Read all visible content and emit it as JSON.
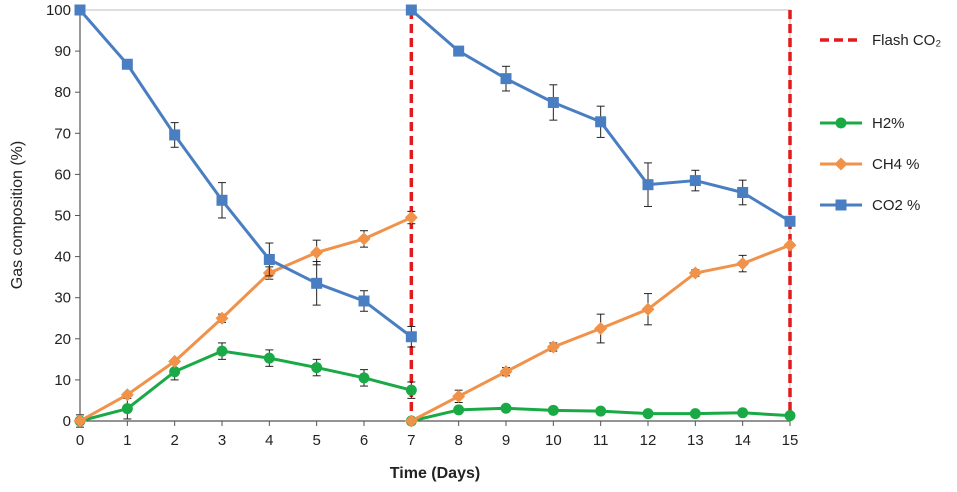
{
  "chart_data": {
    "type": "line",
    "title": "",
    "xlabel": "Time (Days)",
    "ylabel": "Gas composition (%)",
    "xlim": [
      0,
      15
    ],
    "ylim": [
      0,
      100
    ],
    "x_ticks": [
      0,
      1,
      2,
      3,
      4,
      5,
      6,
      7,
      8,
      9,
      10,
      11,
      12,
      13,
      14,
      15
    ],
    "y_ticks": [
      0,
      10,
      20,
      30,
      40,
      50,
      60,
      70,
      80,
      90,
      100
    ],
    "grid": false,
    "legend_position": "right",
    "vlines": {
      "name": "Flash CO₂",
      "color": "#e31a1c",
      "x": [
        7,
        15
      ]
    },
    "series": [
      {
        "name": "H2%",
        "color": "#1aaa45",
        "marker": "circle",
        "segments": [
          {
            "x": [
              0,
              1,
              2,
              3,
              4,
              5,
              6,
              7
            ],
            "y": [
              0,
              3,
              12,
              17,
              15.3,
              13,
              10.5,
              7.5
            ],
            "err": [
              1.5,
              2.5,
              2,
              2,
              2,
              2,
              2,
              2
            ]
          },
          {
            "x": [
              7,
              8,
              9,
              10,
              11,
              12,
              13,
              14,
              15
            ],
            "y": [
              0,
              2.7,
              3.1,
              2.6,
              2.4,
              1.8,
              1.8,
              2,
              1.3
            ],
            "err": [
              0,
              0,
              0,
              0,
              0,
              0,
              0,
              0,
              0
            ]
          }
        ]
      },
      {
        "name": "CH4 %",
        "color": "#f0924a",
        "marker": "diamond",
        "segments": [
          {
            "x": [
              0,
              1,
              2,
              3,
              4,
              5,
              6,
              7
            ],
            "y": [
              0,
              6.4,
              14.5,
              25,
              36,
              41,
              44.3,
              49.5
            ],
            "err": [
              0,
              0,
              0,
              1,
              1.5,
              3,
              2,
              1.5
            ]
          },
          {
            "x": [
              7,
              8,
              9,
              10,
              11,
              12,
              13,
              14,
              15
            ],
            "y": [
              0,
              6,
              12,
              18,
              22.5,
              27.2,
              36,
              38.3,
              42.8
            ],
            "err": [
              0,
              1.5,
              1,
              1,
              3.5,
              3.8,
              0.8,
              2,
              0
            ]
          }
        ]
      },
      {
        "name": "CO2 %",
        "color": "#4a7ec2",
        "marker": "square",
        "segments": [
          {
            "x": [
              0,
              1,
              2,
              3,
              4,
              5,
              6,
              7
            ],
            "y": [
              100,
              86.8,
              69.6,
              53.7,
              39.3,
              33.5,
              29.2,
              20.5
            ],
            "err": [
              0,
              0,
              3,
              4.3,
              4,
              5.3,
              2.5,
              2.5
            ]
          },
          {
            "x": [
              7,
              8,
              9,
              10,
              11,
              12,
              13,
              14,
              15
            ],
            "y": [
              100,
              90,
              83.3,
              77.5,
              72.8,
              57.5,
              58.5,
              55.6,
              48.6
            ],
            "err": [
              0,
              0,
              3,
              4.3,
              3.8,
              5.3,
              2.5,
              3,
              0
            ]
          }
        ]
      }
    ],
    "legend": [
      {
        "label": "Flash CO₂",
        "kind": "dashed",
        "color": "#e31a1c"
      },
      {
        "label": "H2%",
        "kind": "circle",
        "color": "#1aaa45"
      },
      {
        "label": "CH4 %",
        "kind": "diamond",
        "color": "#f0924a"
      },
      {
        "label": "CO2 %",
        "kind": "square",
        "color": "#4a7ec2"
      }
    ]
  }
}
